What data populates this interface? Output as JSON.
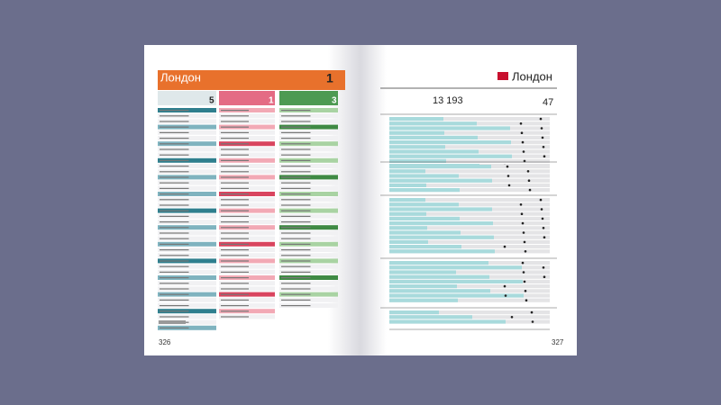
{
  "left_page": {
    "city": "Лондон",
    "rank": "1",
    "columns": [
      {
        "rank": "5"
      },
      {
        "rank": "1"
      },
      {
        "rank": "3"
      }
    ],
    "page_number": "326"
  },
  "right_page": {
    "city": "Лондон",
    "total": "13 193",
    "rank": "47",
    "page_number": "327"
  }
}
